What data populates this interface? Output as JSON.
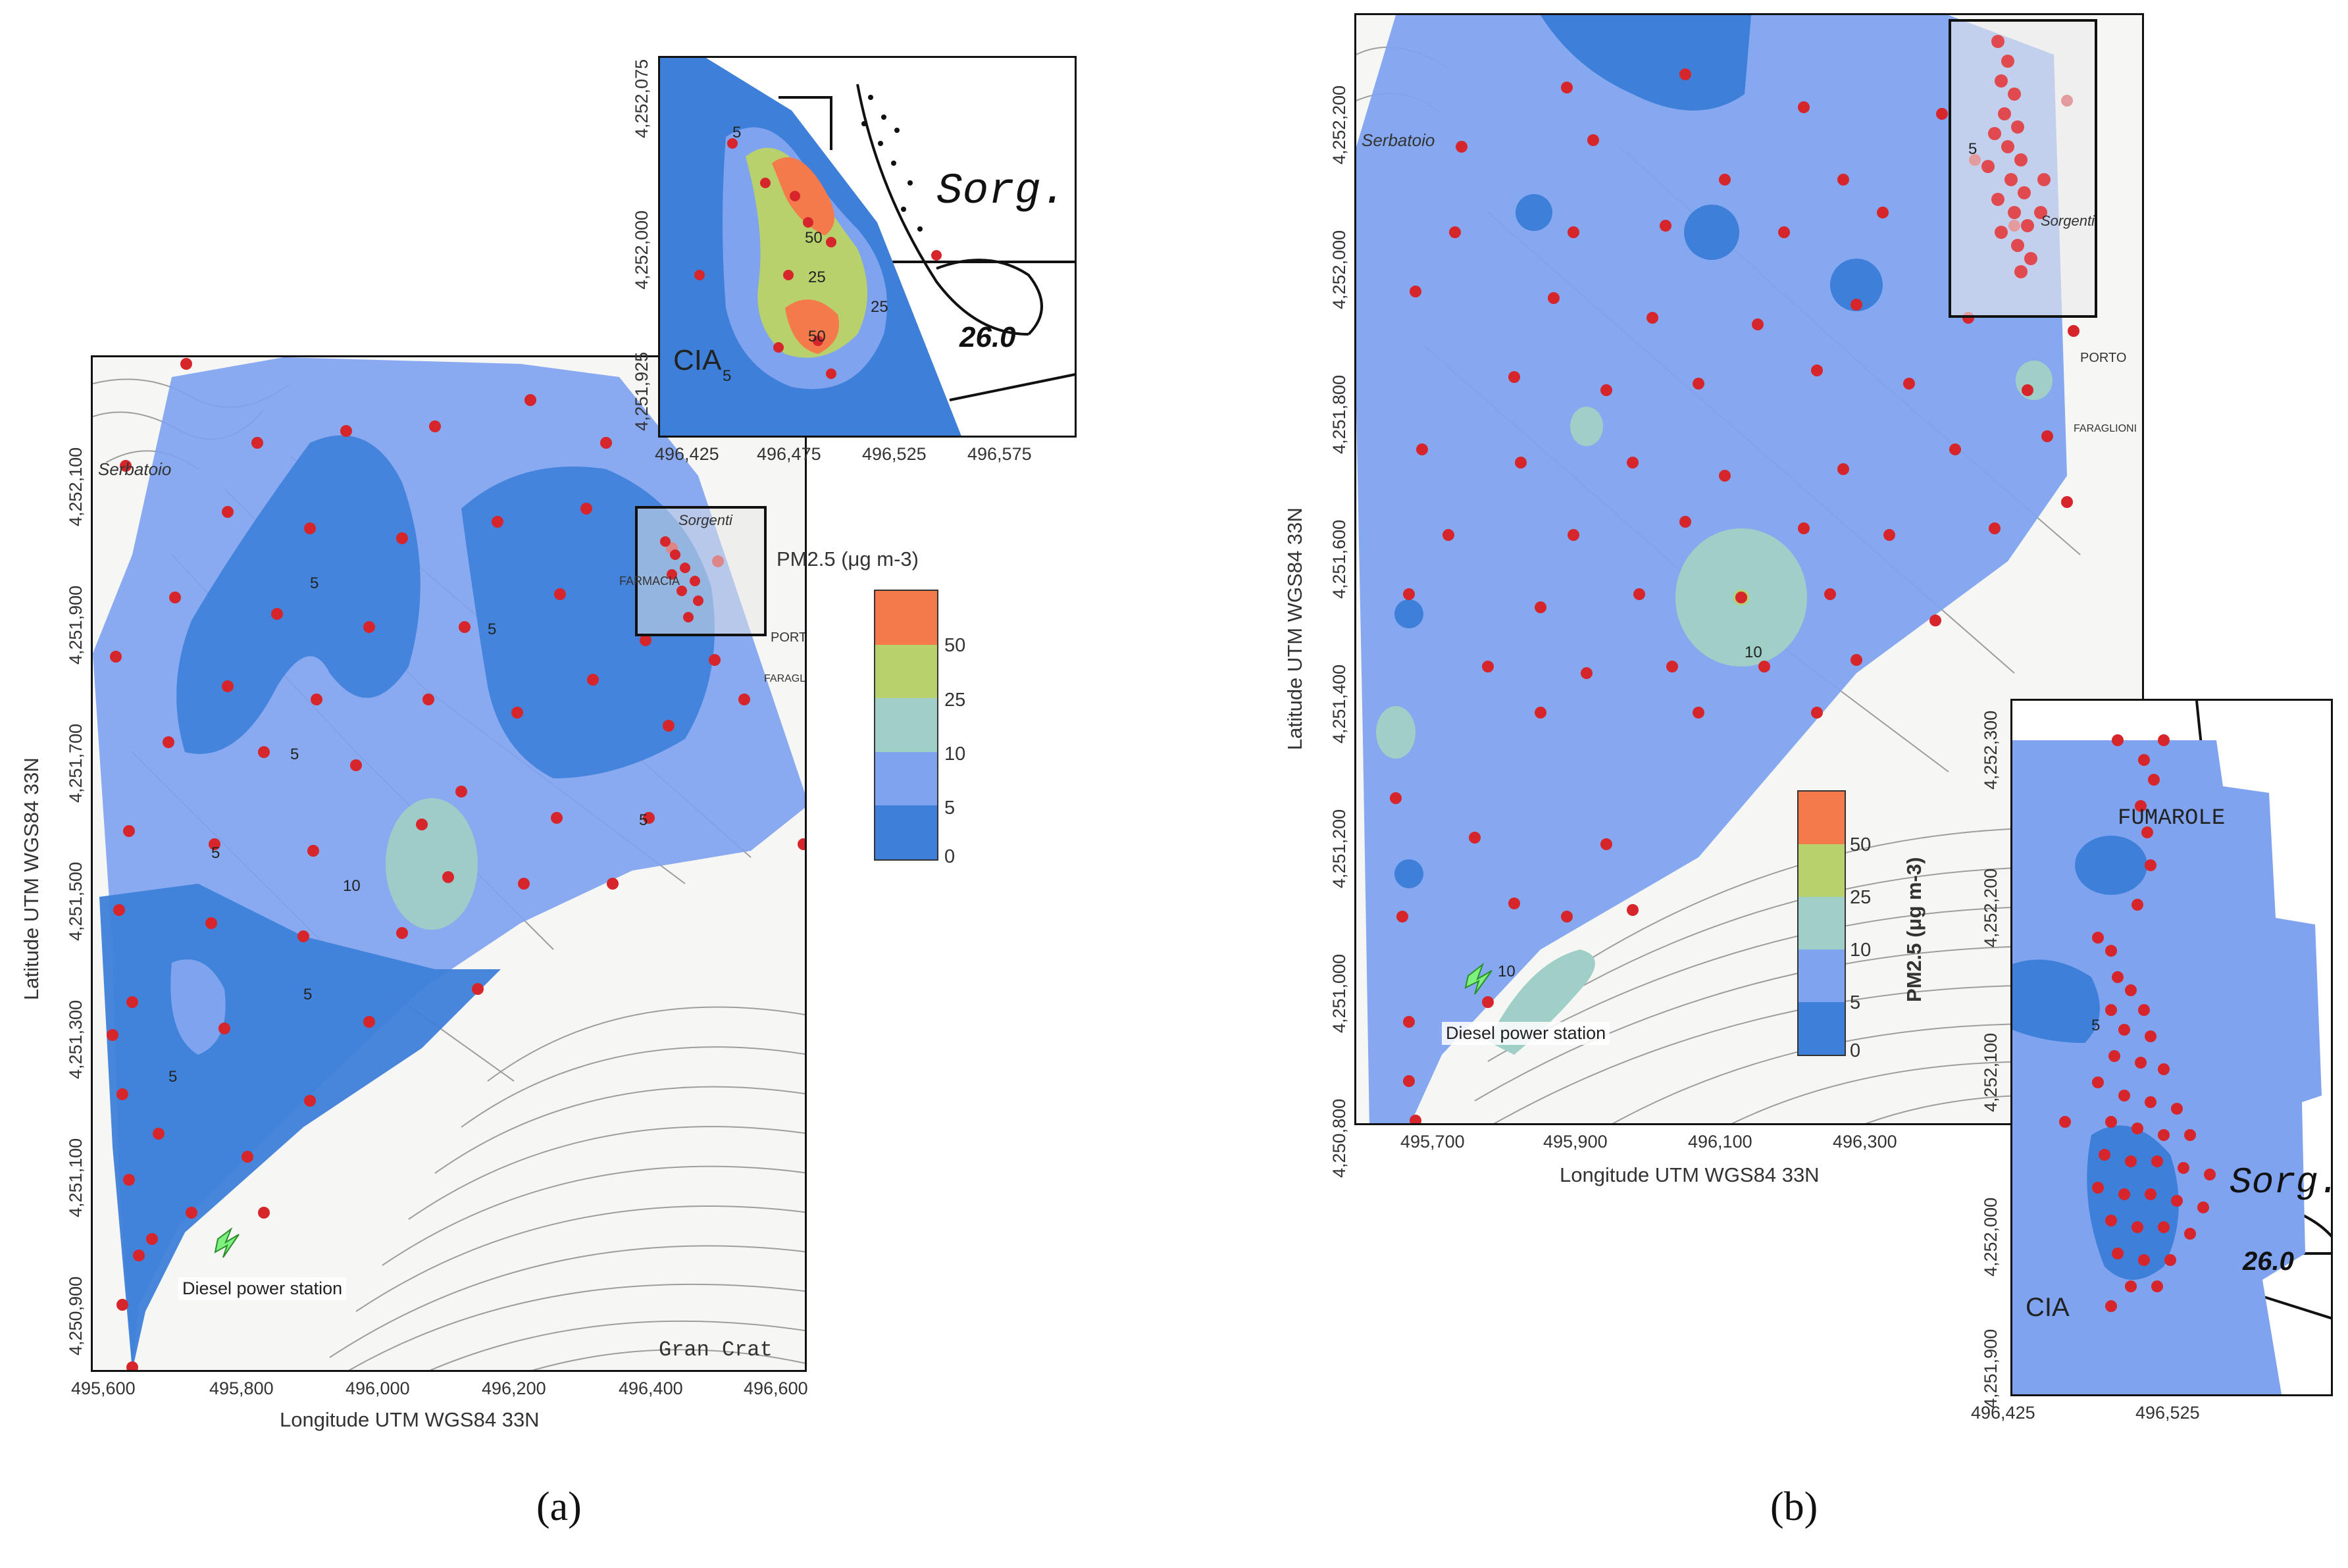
{
  "legend_title": "PM2.5 (μg m-3)",
  "legend_classes": [
    {
      "label": "50",
      "color": "#f47a4b"
    },
    {
      "label": "25",
      "color": "#b9d16c"
    },
    {
      "label": "10",
      "color": "#9fcfc6"
    },
    {
      "label": "5",
      "color": "#7fa3ef"
    },
    {
      "label": "0",
      "color": "#3d7fd9"
    }
  ],
  "panel_a": {
    "label": "(a)",
    "x_title": "Longitude UTM WGS84 33N",
    "y_title": "Latitude UTM WGS84 33N",
    "x_ticks": [
      "495,600",
      "495,800",
      "496,000",
      "496,200",
      "496,400",
      "496,600"
    ],
    "y_ticks": [
      "4,252,100",
      "4,251,900",
      "4,251,700",
      "4,251,500",
      "4,251,300",
      "4,251,100",
      "4,250,900"
    ],
    "station_label": "Diesel power station",
    "map_text": [
      "Serbatoio",
      "Sorgenti",
      "FARMACIA",
      "PORTO",
      "FARAGLIONI",
      "Gran Crat"
    ],
    "contour_labels": [
      "5",
      "5",
      "5",
      "5",
      "5",
      "10",
      "5",
      "5"
    ],
    "inset": {
      "x_ticks": [
        "496,425",
        "496,475",
        "496,525",
        "496,575"
      ],
      "y_ticks": [
        "4,252,075",
        "4,252,000",
        "4,251,925"
      ],
      "map_text": [
        "Sorg.",
        "26.0",
        "CIA"
      ],
      "contour_labels": [
        "5",
        "50",
        "25",
        "25",
        "50",
        "5"
      ]
    }
  },
  "panel_b": {
    "label": "(b)",
    "x_title": "Longitude UTM WGS84 33N",
    "y_title": "Latitude UTM WGS84 33N",
    "x_ticks": [
      "495,700",
      "495,900",
      "496,100",
      "496,300"
    ],
    "y_ticks": [
      "4,252,200",
      "4,252,000",
      "4,251,800",
      "4,251,600",
      "4,251,400",
      "4,251,200",
      "4,251,000",
      "4,250,800"
    ],
    "station_label": "Diesel power station",
    "map_text": [
      "Serbatoio",
      "Sorgenti",
      "PORTO",
      "FARAGLIONI"
    ],
    "contour_labels": [
      "10",
      "10",
      "5"
    ],
    "inset": {
      "x_ticks": [
        "496,425",
        "496,525"
      ],
      "y_ticks": [
        "4,252,300",
        "4,252,200",
        "4,252,100",
        "4,252,000",
        "4,251,900"
      ],
      "map_text": [
        "FUMAROLE",
        "Sorg.",
        "26.0",
        "CIA"
      ],
      "contour_labels": [
        "5"
      ]
    }
  }
}
